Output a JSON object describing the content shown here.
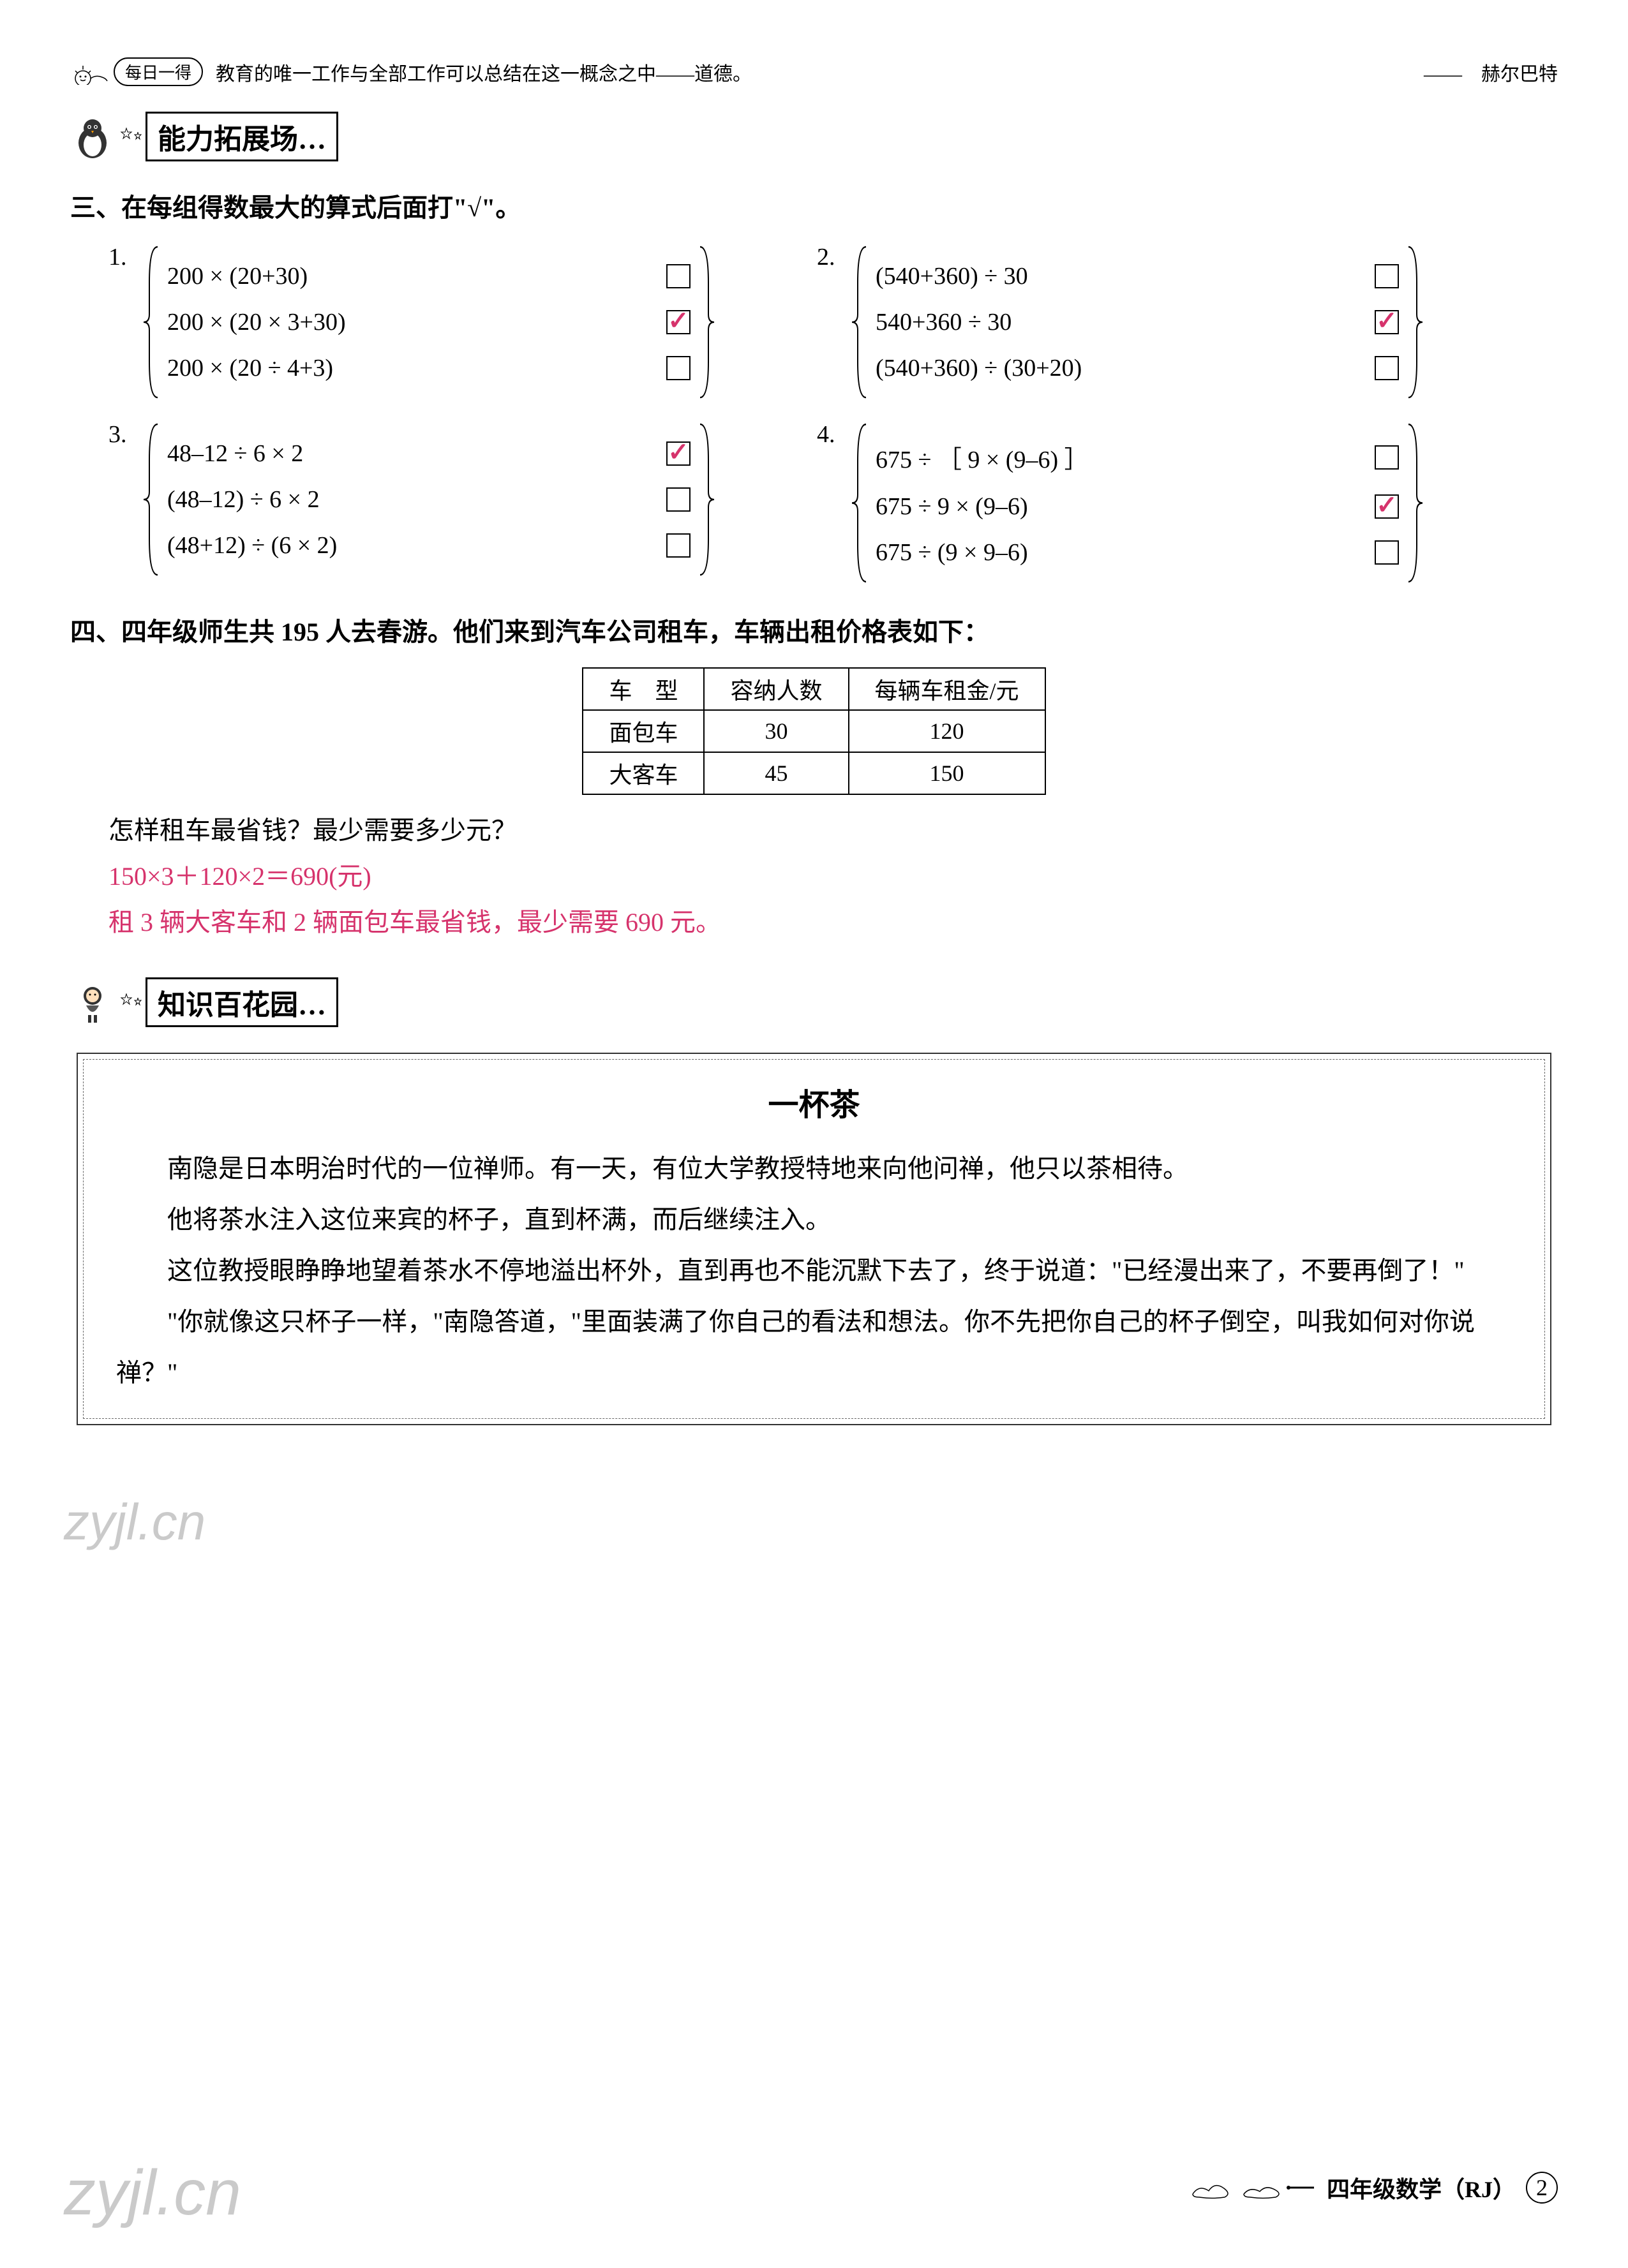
{
  "header": {
    "daily_badge": "每日一得",
    "quote": "教育的唯一工作与全部工作可以总结在这一概念之中——道德。",
    "author": "——　赫尔巴特"
  },
  "section1": {
    "banner": "能力拓展场…",
    "title": "三、在每组得数最大的算式后面打\"√\"。"
  },
  "problems": [
    {
      "num": "1.",
      "rows": [
        {
          "expr": "200 × (20+30)",
          "checked": false
        },
        {
          "expr": "200 × (20 × 3+30)",
          "checked": true
        },
        {
          "expr": "200 × (20 ÷ 4+3)",
          "checked": false
        }
      ]
    },
    {
      "num": "2.",
      "rows": [
        {
          "expr": "(540+360) ÷ 30",
          "checked": false
        },
        {
          "expr": "540+360 ÷ 30",
          "checked": true
        },
        {
          "expr": "(540+360) ÷ (30+20)",
          "checked": false
        }
      ]
    },
    {
      "num": "3.",
      "rows": [
        {
          "expr": "48–12 ÷ 6 × 2",
          "checked": true
        },
        {
          "expr": "(48–12) ÷ 6 × 2",
          "checked": false
        },
        {
          "expr": "(48+12) ÷ (6 × 2)",
          "checked": false
        }
      ]
    },
    {
      "num": "4.",
      "rows": [
        {
          "expr": "675 ÷ ［ 9 × (9–6) ］",
          "checked": false
        },
        {
          "expr": "675 ÷ 9 × (9–6)",
          "checked": true
        },
        {
          "expr": "675 ÷ (9 × 9–6)",
          "checked": false
        }
      ]
    }
  ],
  "section4": {
    "title": "四、四年级师生共 195 人去春游。他们来到汽车公司租车，车辆出租价格表如下：",
    "table": {
      "headers": [
        "车　型",
        "容纳人数",
        "每辆车租金/元"
      ],
      "rows": [
        [
          "面包车",
          "30",
          "120"
        ],
        [
          "大客车",
          "45",
          "150"
        ]
      ]
    },
    "question": "怎样租车最省钱？最少需要多少元？",
    "answers": [
      "150×3＋120×2＝690(元)",
      "租 3 辆大客车和 2 辆面包车最省钱，最少需要 690 元。"
    ]
  },
  "section2": {
    "banner": "知识百花园…"
  },
  "story": {
    "title": "一杯茶",
    "paragraphs": [
      "南隐是日本明治时代的一位禅师。有一天，有位大学教授特地来向他问禅，他只以茶相待。",
      "他将茶水注入这位来宾的杯子，直到杯满，而后继续注入。",
      "这位教授眼睁睁地望着茶水不停地溢出杯外，直到再也不能沉默下去了，终于说道：\"已经漫出来了，不要再倒了！\"",
      "\"你就像这只杯子一样，\"南隐答道，\"里面装满了你自己的看法和想法。你不先把你自己的杯子倒空，叫我如何对你说禅？\""
    ]
  },
  "footer": {
    "subject": "四年级数学（RJ）",
    "page": "2"
  },
  "watermark": "zyjl.cn",
  "colors": {
    "answer": "#d6336c",
    "text": "#000000",
    "bg": "#ffffff"
  }
}
